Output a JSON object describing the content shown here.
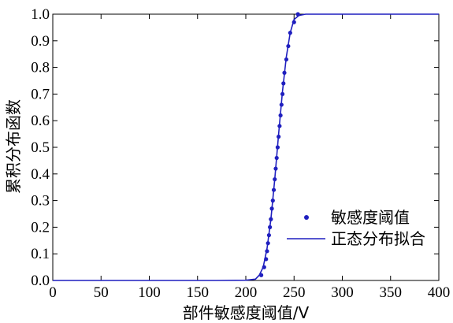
{
  "chart_data": {
    "type": "scatter",
    "xlabel": "部件敏感度阈值/V",
    "ylabel": "累积分布函数",
    "xlim": [
      0,
      400
    ],
    "ylim": [
      0,
      1.0
    ],
    "x_ticks": [
      "0",
      "50",
      "100",
      "150",
      "200",
      "250",
      "300",
      "350",
      "400"
    ],
    "y_ticks": [
      "0.0",
      "0.1",
      "0.2",
      "0.3",
      "0.4",
      "0.5",
      "0.6",
      "0.7",
      "0.8",
      "0.9",
      "1.0"
    ],
    "grid": false,
    "legend_position": "bottom-right",
    "series": [
      {
        "name": "敏感度阈值",
        "kind": "points",
        "color": "#1f1fbf",
        "x": [
          216,
          219,
          221,
          222,
          223,
          224,
          225,
          226,
          227,
          228,
          229,
          230,
          231,
          232,
          233,
          234,
          235,
          236,
          237,
          238,
          239,
          240,
          242,
          244,
          246,
          250,
          254
        ],
        "y": [
          0.02,
          0.05,
          0.08,
          0.11,
          0.14,
          0.17,
          0.2,
          0.23,
          0.27,
          0.3,
          0.34,
          0.38,
          0.42,
          0.46,
          0.5,
          0.54,
          0.58,
          0.62,
          0.66,
          0.7,
          0.74,
          0.78,
          0.83,
          0.88,
          0.93,
          0.97,
          1.0
        ]
      },
      {
        "name": "正态分布拟合",
        "kind": "line",
        "color": "#1f1fbf",
        "x": [
          0,
          170,
          200,
          210,
          214,
          218,
          222,
          226,
          230,
          234,
          238,
          242,
          246,
          250,
          255,
          262,
          400
        ],
        "y": [
          0.0,
          0.0,
          0.001,
          0.005,
          0.02,
          0.05,
          0.12,
          0.23,
          0.38,
          0.55,
          0.71,
          0.84,
          0.93,
          0.98,
          0.995,
          1.0,
          1.0
        ]
      }
    ]
  }
}
